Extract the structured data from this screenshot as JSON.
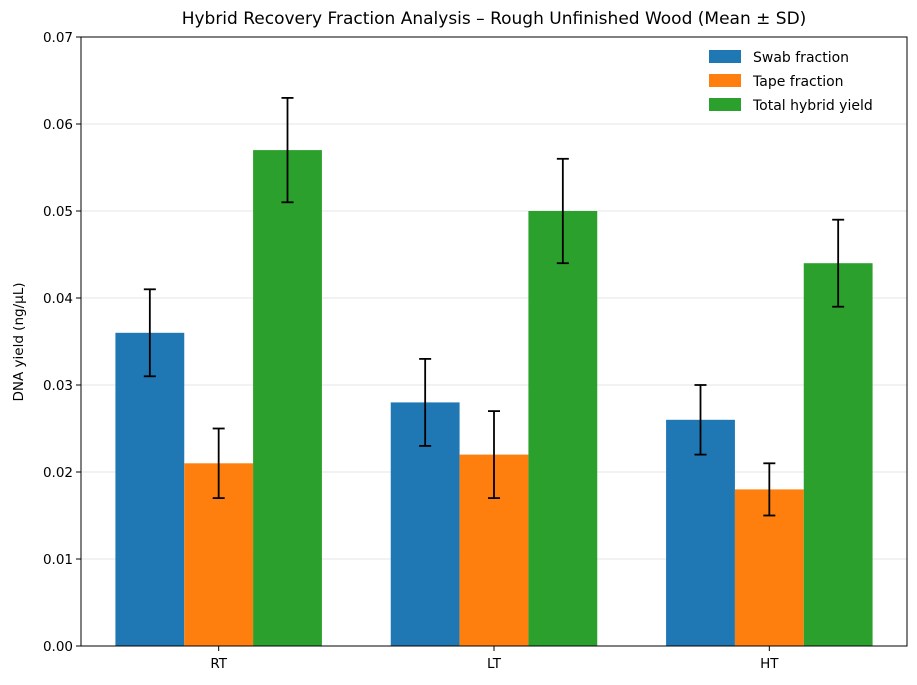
{
  "chart_data": {
    "type": "bar",
    "title": "Hybrid Recovery Fraction Analysis – Rough Unfinished Wood (Mean ± SD)",
    "xlabel": "",
    "ylabel": "DNA yield (ng/µL)",
    "categories": [
      "RT",
      "LT",
      "HT"
    ],
    "ylim": [
      0,
      0.07
    ],
    "yticks": [
      0.0,
      0.01,
      0.02,
      0.03,
      0.04,
      0.05,
      0.06,
      0.07
    ],
    "ytick_labels": [
      "0.00",
      "0.01",
      "0.02",
      "0.03",
      "0.04",
      "0.05",
      "0.06",
      "0.07"
    ],
    "grid": "y",
    "legend_position": "top-right",
    "series": [
      {
        "name": "Swab fraction",
        "color": "#1f77b4",
        "values": [
          0.036,
          0.028,
          0.026
        ],
        "errors": [
          0.005,
          0.005,
          0.004
        ]
      },
      {
        "name": "Tape fraction",
        "color": "#ff7f0e",
        "values": [
          0.021,
          0.022,
          0.018
        ],
        "errors": [
          0.004,
          0.005,
          0.003
        ]
      },
      {
        "name": "Total hybrid yield",
        "color": "#2ca02c",
        "values": [
          0.057,
          0.05,
          0.044
        ],
        "errors": [
          0.006,
          0.006,
          0.005
        ]
      }
    ]
  }
}
